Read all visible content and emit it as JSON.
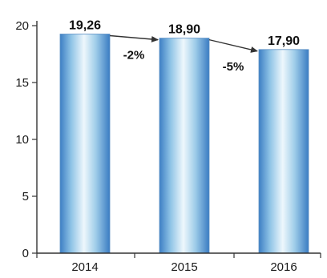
{
  "chart_data": {
    "type": "bar",
    "categories": [
      "2014",
      "2015",
      "2016"
    ],
    "values": [
      19.26,
      18.9,
      17.9
    ],
    "value_labels": [
      "19,26",
      "18,90",
      "17,90"
    ],
    "changes": [
      {
        "from": "2014",
        "to": "2015",
        "label": "-2%"
      },
      {
        "from": "2015",
        "to": "2016",
        "label": "-5%"
      }
    ],
    "yticks": [
      0,
      5,
      10,
      15,
      20
    ],
    "ylim": [
      0,
      20
    ],
    "grid": false,
    "colors": {
      "bar_edge": "#3d7fc4",
      "bar_mid": "#e9f4fb",
      "bar_light": "#9fcde9",
      "bar_outline": "#5b8fc4",
      "axis": "#333333",
      "arrow": "#333333"
    }
  }
}
